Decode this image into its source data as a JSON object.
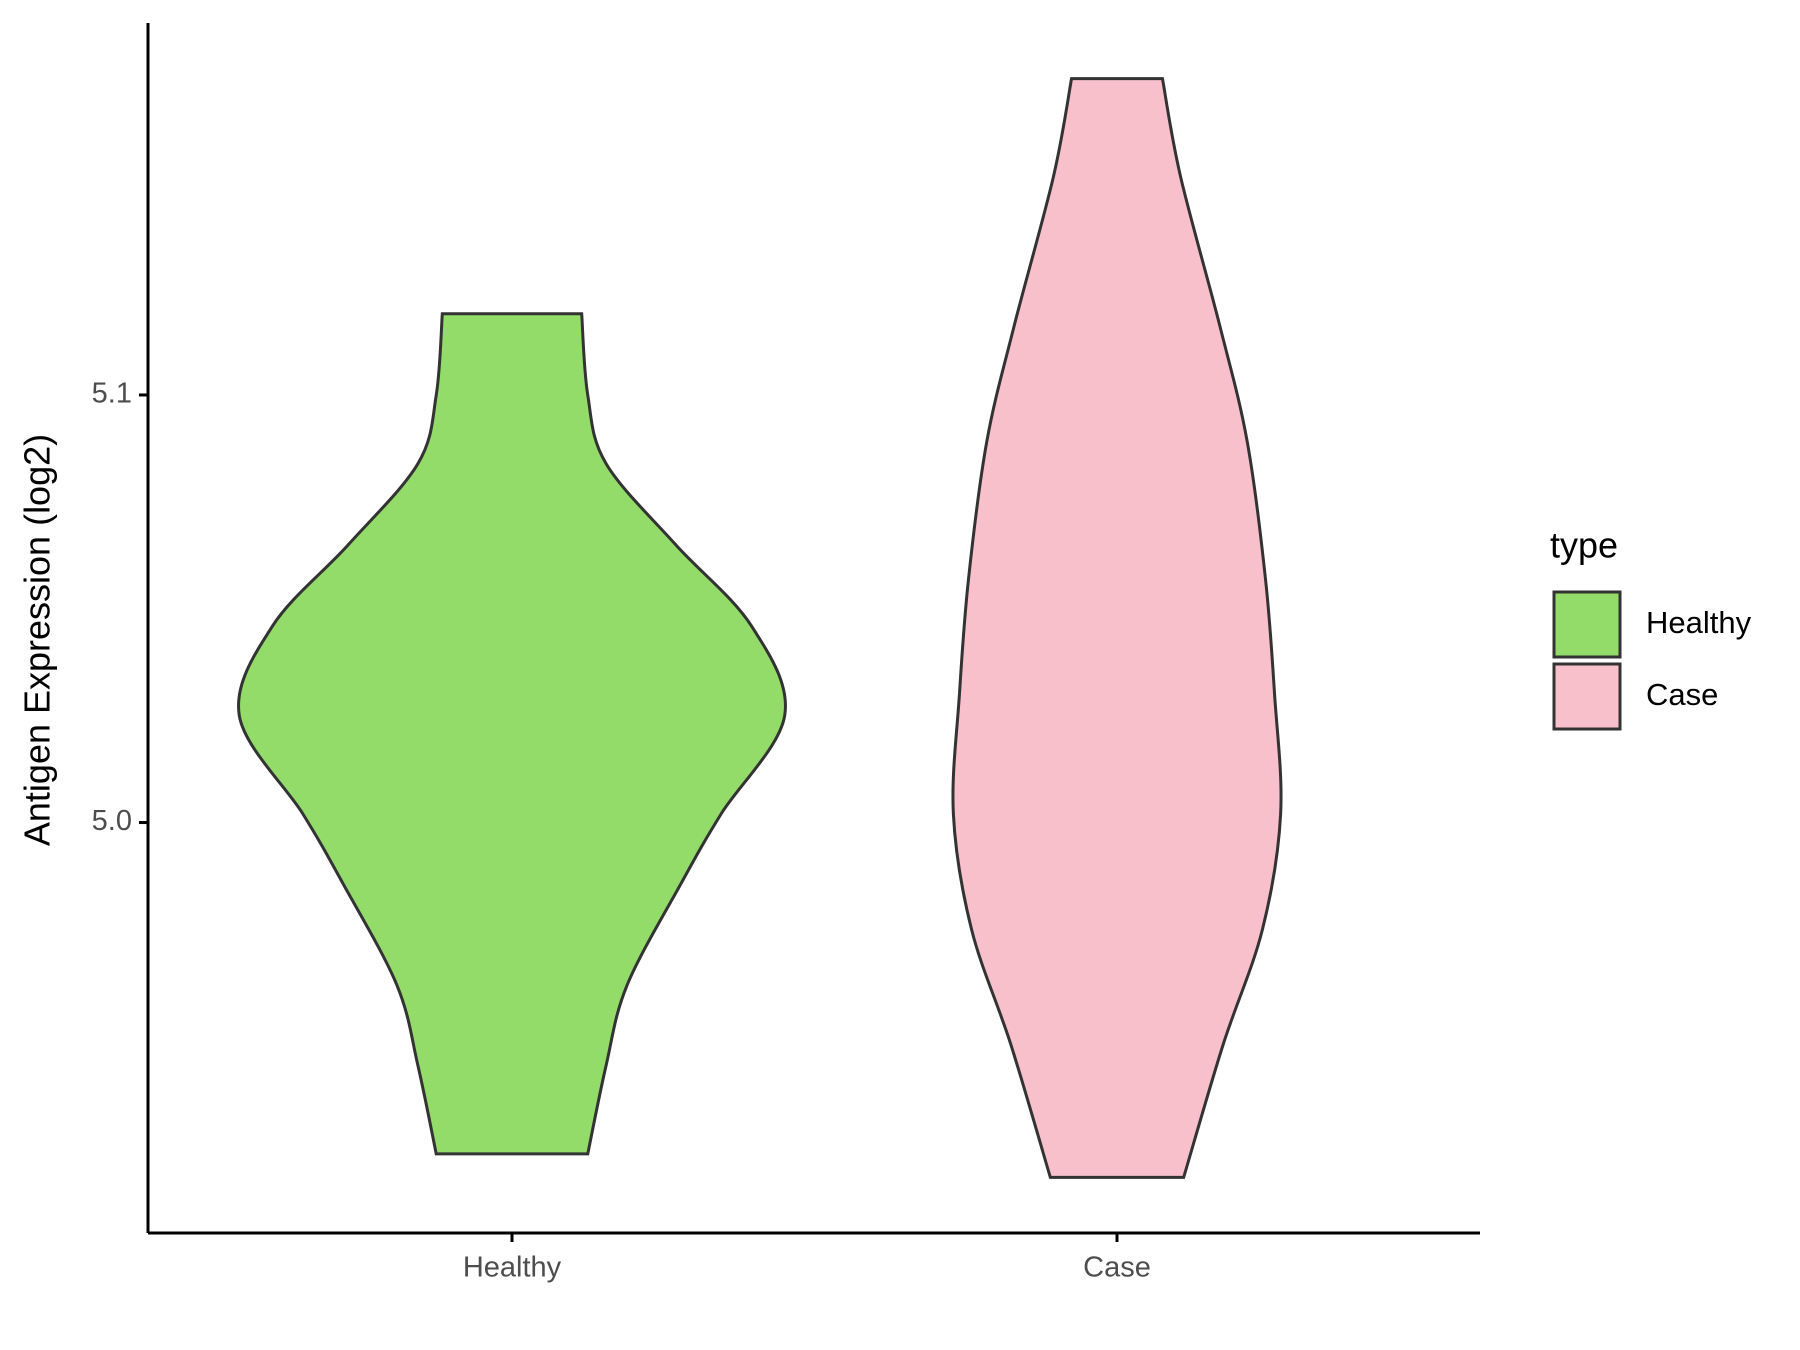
{
  "chart_data": {
    "type": "violin",
    "y_label": "Antigen Expression (log2)",
    "categories": [
      "Healthy",
      "Case"
    ],
    "ylim": [
      4.904,
      5.187
    ],
    "yticks": [
      {
        "value": 5.0,
        "label": "5.0"
      },
      5.1
    ],
    "legend_title": "type",
    "legend_position": "right",
    "series": [
      {
        "name": "Healthy",
        "color": "#93dc6a",
        "y": [
          5.119,
          5.1,
          5.084,
          5.065,
          5.046,
          5.025,
          5.002,
          4.986,
          4.962,
          4.943,
          4.9225
        ],
        "width": [
          0.23,
          0.25,
          0.31,
          0.54,
          0.79,
          0.9,
          0.69,
          0.56,
          0.38,
          0.31,
          0.25
        ]
      },
      {
        "name": "Case",
        "color": "#f7c0cb",
        "y": [
          5.174,
          5.151,
          5.116,
          5.089,
          5.057,
          5.03,
          5.002,
          4.975,
          4.948,
          4.917
        ],
        "width": [
          0.15,
          0.21,
          0.34,
          0.43,
          0.49,
          0.52,
          0.54,
          0.48,
          0.35,
          0.22
        ]
      }
    ]
  }
}
